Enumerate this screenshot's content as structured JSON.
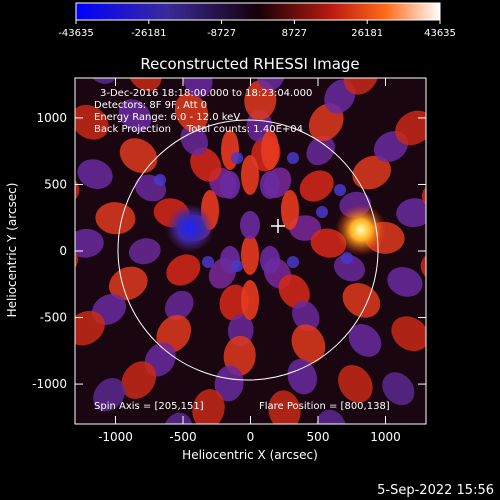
{
  "colorbar": {
    "tick_labels": [
      "-43635",
      "-26181",
      "-8727",
      "8727",
      "26181",
      "43635"
    ],
    "min": -43635,
    "max": 43635
  },
  "plot": {
    "title": "Reconstructed RHESSI Image",
    "info_lines": [
      "3-Dec-2016 18:18:00.000 to 18:23:04.000",
      "Detectors: 8F 9F, Att 0",
      "Energy Range: 6.0 - 12.0 keV",
      "Back Projection     Total counts: 1.40E+04"
    ],
    "spin_axis_label": "Spin Axis = [205,151]",
    "flare_position_label": "Flare Position = [800,138]",
    "xlabel": "Heliocentric X (arcsec)",
    "ylabel": "Heliocentric Y (arcsec)",
    "x_ticks": [
      "-1000",
      "-500",
      "0",
      "500",
      "1000"
    ],
    "y_ticks": [
      "1000",
      "500",
      "0",
      "-500",
      "-1000"
    ],
    "xlim": [
      -1300,
      1300
    ],
    "ylim": [
      -1300,
      1300
    ],
    "spin_axis": [
      205,
      151
    ],
    "flare_position": [
      800,
      138
    ],
    "colors": {
      "negative_peak": "#1a1aff",
      "mid_negative": "#5a2a8a",
      "zero": "#1a0008",
      "mid_positive": "#e8402a",
      "positive_peak": "#ffffe0"
    }
  },
  "footer": {
    "date": "5-Sep-2022 15:56"
  }
}
